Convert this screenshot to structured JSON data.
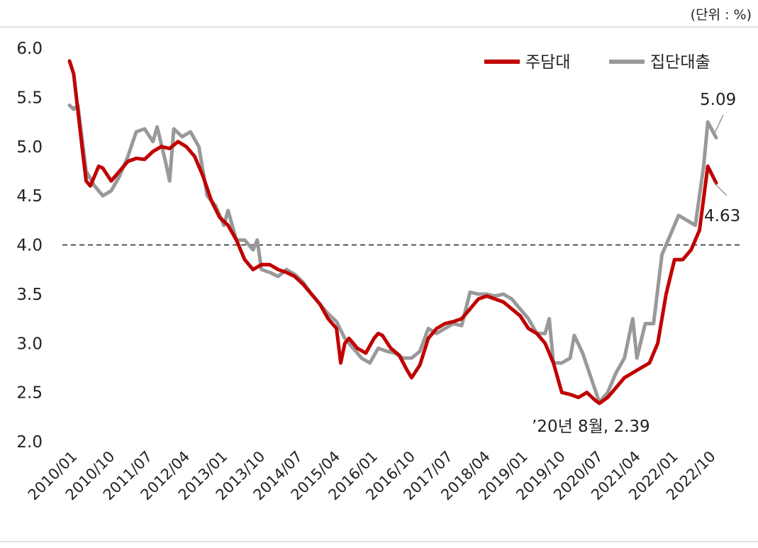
{
  "chart_data": {
    "type": "line",
    "unit_label": "(단위 : %)",
    "ylim": [
      2.0,
      6.0
    ],
    "yticks": [
      "2.0",
      "2.5",
      "3.0",
      "3.5",
      "4.0",
      "4.5",
      "5.0",
      "5.5",
      "6.0"
    ],
    "xtick_labels": [
      "2010/01",
      "2010/10",
      "2011/07",
      "2012/04",
      "2013/01",
      "2013/10",
      "2014/07",
      "2015/04",
      "2016/01",
      "2016/10",
      "2017/07",
      "2018/04",
      "2019/01",
      "2019/10",
      "2020/07",
      "2021/04",
      "2022/01",
      "2022/10"
    ],
    "x_start": "2010/01",
    "x_end": "2022/12",
    "reference_line": 4.0,
    "grid": false,
    "legend_position": "top-right",
    "series": [
      {
        "name": "주담대",
        "color": "#c00000",
        "points": [
          [
            "2010/01",
            5.87
          ],
          [
            "2010/02",
            5.74
          ],
          [
            "2010/04",
            5.0
          ],
          [
            "2010/05",
            4.65
          ],
          [
            "2010/06",
            4.6
          ],
          [
            "2010/08",
            4.8
          ],
          [
            "2010/09",
            4.78
          ],
          [
            "2010/11",
            4.65
          ],
          [
            "2011/01",
            4.75
          ],
          [
            "2011/03",
            4.85
          ],
          [
            "2011/05",
            4.88
          ],
          [
            "2011/07",
            4.87
          ],
          [
            "2011/09",
            4.95
          ],
          [
            "2011/11",
            5.0
          ],
          [
            "2012/01",
            4.98
          ],
          [
            "2012/03",
            5.05
          ],
          [
            "2012/05",
            5.0
          ],
          [
            "2012/07",
            4.9
          ],
          [
            "2012/09",
            4.7
          ],
          [
            "2012/11",
            4.45
          ],
          [
            "2013/01",
            4.28
          ],
          [
            "2013/03",
            4.2
          ],
          [
            "2013/05",
            4.05
          ],
          [
            "2013/07",
            3.85
          ],
          [
            "2013/09",
            3.75
          ],
          [
            "2013/11",
            3.8
          ],
          [
            "2014/01",
            3.8
          ],
          [
            "2014/03",
            3.75
          ],
          [
            "2014/05",
            3.72
          ],
          [
            "2014/07",
            3.68
          ],
          [
            "2014/09",
            3.6
          ],
          [
            "2014/11",
            3.5
          ],
          [
            "2015/01",
            3.4
          ],
          [
            "2015/03",
            3.25
          ],
          [
            "2015/05",
            3.15
          ],
          [
            "2015/06",
            2.8
          ],
          [
            "2015/07",
            3.0
          ],
          [
            "2015/08",
            3.05
          ],
          [
            "2015/10",
            2.95
          ],
          [
            "2015/12",
            2.9
          ],
          [
            "2016/02",
            3.05
          ],
          [
            "2016/03",
            3.1
          ],
          [
            "2016/04",
            3.08
          ],
          [
            "2016/06",
            2.95
          ],
          [
            "2016/08",
            2.88
          ],
          [
            "2016/10",
            2.72
          ],
          [
            "2016/11",
            2.65
          ],
          [
            "2017/01",
            2.78
          ],
          [
            "2017/03",
            3.05
          ],
          [
            "2017/05",
            3.15
          ],
          [
            "2017/07",
            3.2
          ],
          [
            "2017/09",
            3.22
          ],
          [
            "2017/11",
            3.25
          ],
          [
            "2018/01",
            3.35
          ],
          [
            "2018/03",
            3.45
          ],
          [
            "2018/05",
            3.48
          ],
          [
            "2018/07",
            3.45
          ],
          [
            "2018/09",
            3.42
          ],
          [
            "2018/11",
            3.35
          ],
          [
            "2019/01",
            3.28
          ],
          [
            "2019/03",
            3.15
          ],
          [
            "2019/05",
            3.1
          ],
          [
            "2019/07",
            3.0
          ],
          [
            "2019/09",
            2.8
          ],
          [
            "2019/11",
            2.5
          ],
          [
            "2020/01",
            2.48
          ],
          [
            "2020/03",
            2.45
          ],
          [
            "2020/05",
            2.5
          ],
          [
            "2020/07",
            2.42
          ],
          [
            "2020/08",
            2.39
          ],
          [
            "2020/10",
            2.45
          ],
          [
            "2020/12",
            2.55
          ],
          [
            "2021/02",
            2.65
          ],
          [
            "2021/04",
            2.7
          ],
          [
            "2021/06",
            2.75
          ],
          [
            "2021/08",
            2.8
          ],
          [
            "2021/10",
            3.0
          ],
          [
            "2021/12",
            3.5
          ],
          [
            "2022/02",
            3.85
          ],
          [
            "2022/04",
            3.85
          ],
          [
            "2022/06",
            3.95
          ],
          [
            "2022/08",
            4.15
          ],
          [
            "2022/10",
            4.8
          ],
          [
            "2022/12",
            4.63
          ]
        ]
      },
      {
        "name": "집단대출",
        "color": "#999999",
        "points": [
          [
            "2010/01",
            5.42
          ],
          [
            "2010/02",
            5.38
          ],
          [
            "2010/03",
            5.42
          ],
          [
            "2010/05",
            4.75
          ],
          [
            "2010/07",
            4.6
          ],
          [
            "2010/09",
            4.5
          ],
          [
            "2010/11",
            4.55
          ],
          [
            "2011/01",
            4.7
          ],
          [
            "2011/03",
            4.9
          ],
          [
            "2011/05",
            5.15
          ],
          [
            "2011/07",
            5.18
          ],
          [
            "2011/09",
            5.05
          ],
          [
            "2011/10",
            5.2
          ],
          [
            "2011/12",
            4.85
          ],
          [
            "2012/01",
            4.65
          ],
          [
            "2012/02",
            5.18
          ],
          [
            "2012/04",
            5.1
          ],
          [
            "2012/06",
            5.15
          ],
          [
            "2012/08",
            5.0
          ],
          [
            "2012/10",
            4.5
          ],
          [
            "2012/12",
            4.4
          ],
          [
            "2013/02",
            4.2
          ],
          [
            "2013/03",
            4.35
          ],
          [
            "2013/05",
            4.05
          ],
          [
            "2013/07",
            4.05
          ],
          [
            "2013/09",
            3.95
          ],
          [
            "2013/10",
            4.05
          ],
          [
            "2013/11",
            3.75
          ],
          [
            "2014/01",
            3.72
          ],
          [
            "2014/03",
            3.68
          ],
          [
            "2014/05",
            3.75
          ],
          [
            "2014/07",
            3.7
          ],
          [
            "2014/09",
            3.62
          ],
          [
            "2014/11",
            3.5
          ],
          [
            "2015/01",
            3.4
          ],
          [
            "2015/03",
            3.3
          ],
          [
            "2015/05",
            3.22
          ],
          [
            "2015/07",
            3.05
          ],
          [
            "2015/09",
            2.95
          ],
          [
            "2015/11",
            2.85
          ],
          [
            "2016/01",
            2.8
          ],
          [
            "2016/03",
            2.95
          ],
          [
            "2016/05",
            2.92
          ],
          [
            "2016/07",
            2.9
          ],
          [
            "2016/09",
            2.85
          ],
          [
            "2016/11",
            2.85
          ],
          [
            "2017/01",
            2.92
          ],
          [
            "2017/03",
            3.15
          ],
          [
            "2017/05",
            3.1
          ],
          [
            "2017/07",
            3.15
          ],
          [
            "2017/09",
            3.2
          ],
          [
            "2017/11",
            3.18
          ],
          [
            "2018/01",
            3.52
          ],
          [
            "2018/03",
            3.5
          ],
          [
            "2018/05",
            3.5
          ],
          [
            "2018/07",
            3.48
          ],
          [
            "2018/09",
            3.5
          ],
          [
            "2018/11",
            3.45
          ],
          [
            "2019/01",
            3.35
          ],
          [
            "2019/03",
            3.25
          ],
          [
            "2019/05",
            3.1
          ],
          [
            "2019/07",
            3.1
          ],
          [
            "2019/08",
            3.25
          ],
          [
            "2019/09",
            2.8
          ],
          [
            "2019/11",
            2.8
          ],
          [
            "2020/01",
            2.85
          ],
          [
            "2020/02",
            3.08
          ],
          [
            "2020/04",
            2.9
          ],
          [
            "2020/06",
            2.65
          ],
          [
            "2020/08",
            2.4
          ],
          [
            "2020/10",
            2.5
          ],
          [
            "2020/12",
            2.7
          ],
          [
            "2021/02",
            2.85
          ],
          [
            "2021/04",
            3.25
          ],
          [
            "2021/05",
            2.85
          ],
          [
            "2021/07",
            3.2
          ],
          [
            "2021/09",
            3.2
          ],
          [
            "2021/11",
            3.9
          ],
          [
            "2022/01",
            4.1
          ],
          [
            "2022/03",
            4.3
          ],
          [
            "2022/05",
            4.25
          ],
          [
            "2022/07",
            4.2
          ],
          [
            "2022/09",
            4.8
          ],
          [
            "2022/10",
            5.25
          ],
          [
            "2022/12",
            5.09
          ]
        ]
      }
    ],
    "annotations": [
      {
        "text": "5.09",
        "series": "집단대출"
      },
      {
        "text": "4.63",
        "series": "주담대"
      },
      {
        "text": "’20년 8월, 2.39",
        "series": "주담대"
      }
    ]
  }
}
